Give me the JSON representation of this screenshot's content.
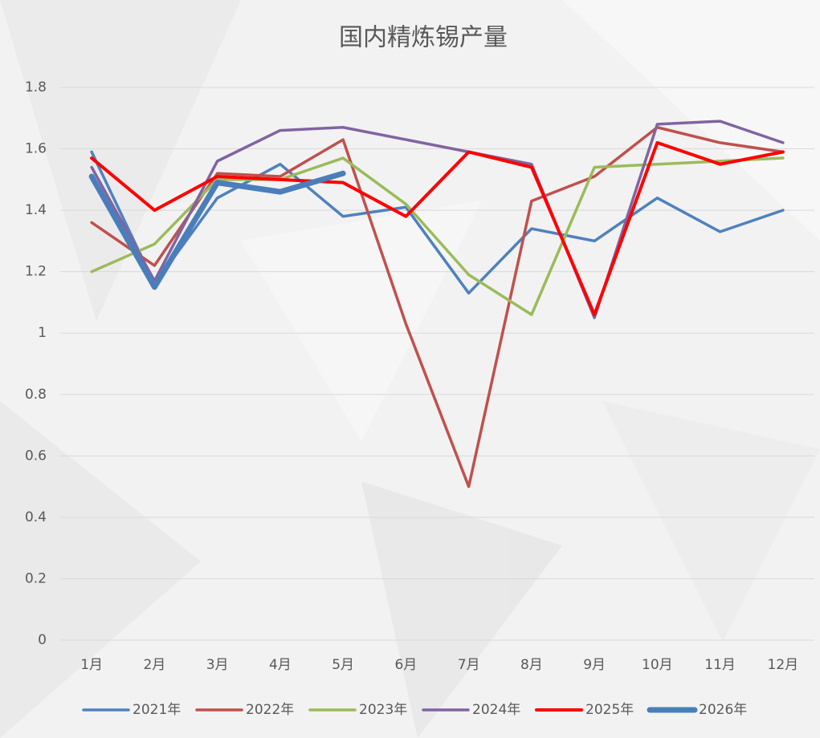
{
  "chart_data": {
    "type": "line",
    "title": "国内精炼锡产量",
    "categories": [
      "1月",
      "2月",
      "3月",
      "4月",
      "5月",
      "6月",
      "7月",
      "8月",
      "9月",
      "10月",
      "11月",
      "12月"
    ],
    "series": [
      {
        "name": "2021年",
        "color": "#4f81bd",
        "width": 3.5,
        "values": [
          1.59,
          1.16,
          1.44,
          1.55,
          1.38,
          1.41,
          1.13,
          1.34,
          1.3,
          1.44,
          1.33,
          1.4
        ]
      },
      {
        "name": "2022年",
        "color": "#c0504d",
        "width": 3.5,
        "values": [
          1.36,
          1.22,
          1.52,
          1.51,
          1.63,
          1.03,
          0.5,
          1.43,
          1.51,
          1.67,
          1.62,
          1.59
        ]
      },
      {
        "name": "2023年",
        "color": "#9bbb59",
        "width": 3.5,
        "values": [
          1.2,
          1.29,
          1.5,
          1.5,
          1.57,
          1.42,
          1.19,
          1.06,
          1.54,
          1.55,
          1.56,
          1.57
        ]
      },
      {
        "name": "2024年",
        "color": "#8064a2",
        "width": 3.5,
        "values": [
          1.54,
          1.17,
          1.56,
          1.66,
          1.67,
          1.63,
          1.59,
          1.55,
          1.05,
          1.68,
          1.69,
          1.62
        ]
      },
      {
        "name": "2025年",
        "color": "#ff0000",
        "width": 4,
        "values": [
          1.57,
          1.4,
          1.51,
          1.5,
          1.49,
          1.38,
          1.59,
          1.54,
          1.06,
          1.62,
          1.55,
          1.59
        ]
      },
      {
        "name": "2026年",
        "color": "#4a7ebb",
        "width": 7,
        "values": [
          1.51,
          1.15,
          1.49,
          1.46,
          1.52,
          null,
          null,
          null,
          null,
          null,
          null,
          null
        ]
      }
    ],
    "ylim": [
      0,
      1.8
    ],
    "yticks": [
      0,
      0.2,
      0.4,
      0.6,
      0.8,
      1,
      1.2,
      1.4,
      1.6,
      1.8
    ],
    "grid": true,
    "legend": "bottom"
  }
}
